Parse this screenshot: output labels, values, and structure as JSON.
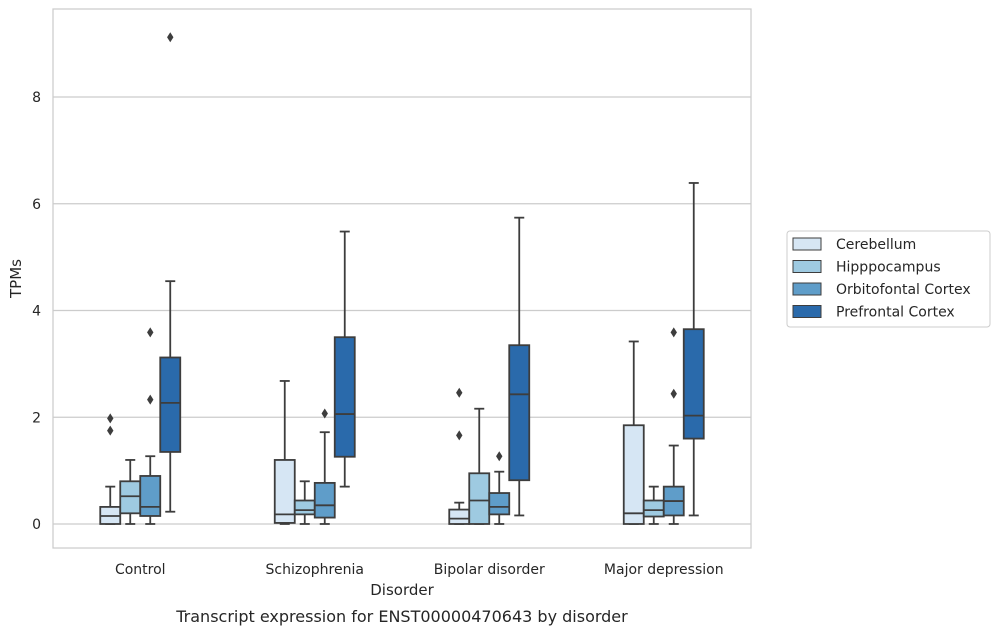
{
  "caption": "Transcript expression for ENST00000470643 by disorder",
  "chart_data": {
    "type": "box",
    "xlabel": "Disorder",
    "ylabel": "TPMs",
    "ylim": [
      -0.45,
      9.65
    ],
    "yticks": [
      0,
      2,
      4,
      6,
      8
    ],
    "grid": "horizontal",
    "legend_position": "right",
    "categories": [
      "Control",
      "Schizophrenia",
      "Bipolar disorder",
      "Major depression"
    ],
    "series": [
      {
        "name": "Cerebellum",
        "color": "#d6e6f4",
        "boxes": [
          {
            "q1": 0.0,
            "median": 0.15,
            "q3": 0.32,
            "whisker_low": 0.0,
            "whisker_high": 0.7,
            "outliers": [
              1.75,
              1.98
            ]
          },
          {
            "q1": 0.02,
            "median": 0.18,
            "q3": 1.2,
            "whisker_low": 0.0,
            "whisker_high": 2.68,
            "outliers": []
          },
          {
            "q1": 0.0,
            "median": 0.1,
            "q3": 0.27,
            "whisker_low": 0.0,
            "whisker_high": 0.4,
            "outliers": [
              1.66,
              2.46
            ]
          },
          {
            "q1": 0.0,
            "median": 0.2,
            "q3": 1.85,
            "whisker_low": 0.0,
            "whisker_high": 3.42,
            "outliers": []
          }
        ]
      },
      {
        "name": "Hipppocampus",
        "color": "#9ecae1",
        "boxes": [
          {
            "q1": 0.2,
            "median": 0.52,
            "q3": 0.8,
            "whisker_low": 0.0,
            "whisker_high": 1.2,
            "outliers": []
          },
          {
            "q1": 0.18,
            "median": 0.26,
            "q3": 0.44,
            "whisker_low": 0.0,
            "whisker_high": 0.8,
            "outliers": []
          },
          {
            "q1": 0.0,
            "median": 0.44,
            "q3": 0.95,
            "whisker_low": 0.0,
            "whisker_high": 2.16,
            "outliers": []
          },
          {
            "q1": 0.14,
            "median": 0.26,
            "q3": 0.44,
            "whisker_low": 0.0,
            "whisker_high": 0.7,
            "outliers": []
          }
        ]
      },
      {
        "name": "Orbitofontal Cortex",
        "color": "#5f9dc9",
        "boxes": [
          {
            "q1": 0.15,
            "median": 0.32,
            "q3": 0.9,
            "whisker_low": 0.0,
            "whisker_high": 1.27,
            "outliers": [
              2.33,
              3.59
            ]
          },
          {
            "q1": 0.12,
            "median": 0.35,
            "q3": 0.77,
            "whisker_low": 0.0,
            "whisker_high": 1.72,
            "outliers": [
              2.07
            ]
          },
          {
            "q1": 0.18,
            "median": 0.32,
            "q3": 0.58,
            "whisker_low": 0.0,
            "whisker_high": 0.98,
            "outliers": [
              1.27
            ]
          },
          {
            "q1": 0.16,
            "median": 0.43,
            "q3": 0.7,
            "whisker_low": 0.0,
            "whisker_high": 1.47,
            "outliers": [
              2.44,
              3.59
            ]
          }
        ]
      },
      {
        "name": "Prefrontal Cortex",
        "color": "#2a6aab",
        "boxes": [
          {
            "q1": 1.35,
            "median": 2.27,
            "q3": 3.12,
            "whisker_low": 0.23,
            "whisker_high": 4.55,
            "outliers": [
              9.12
            ]
          },
          {
            "q1": 1.26,
            "median": 2.06,
            "q3": 3.5,
            "whisker_low": 0.7,
            "whisker_high": 5.48,
            "outliers": []
          },
          {
            "q1": 0.82,
            "median": 2.43,
            "q3": 3.35,
            "whisker_low": 0.16,
            "whisker_high": 5.74,
            "outliers": []
          },
          {
            "q1": 1.6,
            "median": 2.03,
            "q3": 3.65,
            "whisker_low": 0.16,
            "whisker_high": 6.39,
            "outliers": []
          }
        ]
      }
    ]
  }
}
